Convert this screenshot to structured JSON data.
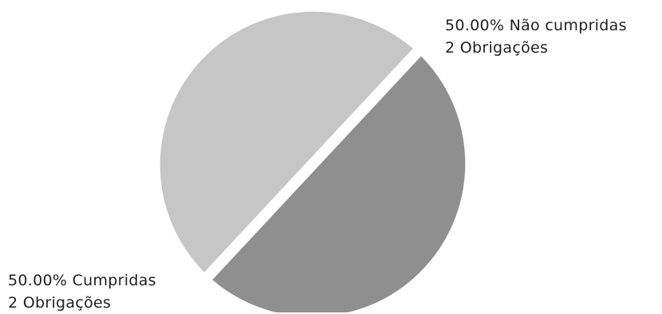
{
  "chart_data": {
    "type": "pie",
    "slices": [
      {
        "label": "Cumpridas",
        "value": 2,
        "percent_text": "50.00%",
        "count_text": "2 Obrigações",
        "color": "#c6c6c6"
      },
      {
        "label": "Não cumpridas",
        "value": 2,
        "percent_text": "50.00%",
        "count_text": "2 Obrigações",
        "color": "#8f8f8f"
      }
    ]
  }
}
